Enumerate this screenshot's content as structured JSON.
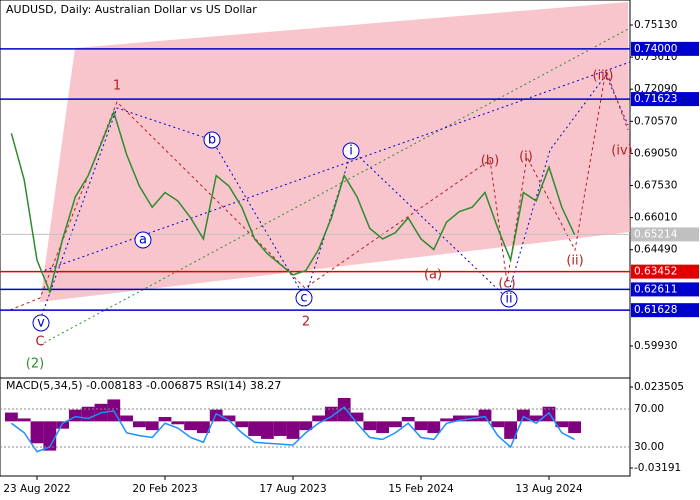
{
  "chart_data": [
    {
      "type": "line",
      "title": "AUDUSD, Daily:  Australian Dollar vs US Dollar",
      "categories": [
        null,
        null,
        "23 Aug 2022",
        null,
        null,
        null,
        null,
        null,
        null,
        null,
        null,
        null,
        "20 Feb 2023",
        null,
        null,
        null,
        null,
        null,
        null,
        null,
        null,
        null,
        "17 Aug 2023",
        null,
        null,
        null,
        null,
        null,
        null,
        null,
        null,
        null,
        "15 Feb 2024",
        null,
        null,
        null,
        null,
        null,
        null,
        null,
        null,
        null,
        "13 Aug 2024",
        null,
        null
      ],
      "values": [
        0.7,
        0.678,
        0.64,
        0.625,
        0.65,
        0.67,
        0.68,
        0.695,
        0.71,
        0.69,
        0.675,
        0.665,
        0.672,
        0.668,
        0.66,
        0.65,
        0.68,
        0.675,
        0.665,
        0.65,
        0.643,
        0.638,
        0.633,
        0.635,
        0.645,
        0.66,
        0.68,
        0.67,
        0.655,
        0.65,
        0.653,
        0.66,
        0.65,
        0.645,
        0.658,
        0.663,
        0.665,
        0.672,
        0.655,
        0.64,
        0.672,
        0.668,
        0.684,
        0.665,
        0.652
      ],
      "color": "#2e8b2e",
      "ylim": [
        0.58558,
        0.76314
      ],
      "yticks": [
        {
          "value": 0.7513,
          "label": "0.75130"
        },
        {
          "value": 0.7361,
          "label": "0.73610"
        },
        {
          "value": 0.7209,
          "label": "0.72090"
        },
        {
          "value": 0.7057,
          "label": "0.70570"
        },
        {
          "value": 0.6905,
          "label": "0.69050"
        },
        {
          "value": 0.6753,
          "label": "0.67530"
        },
        {
          "value": 0.6601,
          "label": "0.66010"
        },
        {
          "value": 0.6449,
          "label": "0.64490"
        },
        {
          "value": 0.5993,
          "label": "0.59930"
        }
      ],
      "levels": [
        {
          "value": 0.74,
          "label": "0.74000",
          "color": "#0000cc"
        },
        {
          "value": 0.71623,
          "label": "0.71623",
          "color": "#0000cc"
        },
        {
          "value": 0.65214,
          "label": "0.65214",
          "color": "#c0c0c0"
        },
        {
          "value": 0.63452,
          "label": "0.63452",
          "color": "#e00000"
        },
        {
          "value": 0.62611,
          "label": "0.62611",
          "color": "#0000cc"
        },
        {
          "value": 0.61628,
          "label": "0.61628",
          "color": "#0000cc"
        }
      ],
      "annotations": [
        "1",
        "2",
        "C",
        "(2)",
        "v",
        "a",
        "b",
        "c",
        "i",
        "ii",
        "(a)",
        "(b)",
        "(c)",
        "(i)",
        "(ii)",
        "(iii)",
        "(iv)"
      ]
    },
    {
      "type": "bar",
      "title": "MACD(5,34,5) -0.008183 -0.006875 RSI(14) 38.27",
      "series": [
        {
          "color": "#800080",
          "values": [
            0.006,
            0.002,
            -0.015,
            -0.02,
            -0.005,
            0.008,
            0.01,
            0.012,
            0.015,
            0.004,
            -0.004,
            -0.006,
            0.003,
            -0.002,
            -0.006,
            -0.008,
            0.008,
            0.004,
            -0.004,
            -0.01,
            -0.012,
            -0.01,
            -0.012,
            -0.006,
            0.004,
            0.01,
            0.016,
            0.006,
            -0.006,
            -0.008,
            -0.004,
            0.003,
            -0.006,
            -0.008,
            0.002,
            0.004,
            0.004,
            0.008,
            -0.004,
            -0.012,
            0.008,
            0.004,
            0.01,
            -0.004,
            -0.008
          ]
        },
        {
          "color": "#1e90ff",
          "axis": "y2",
          "values": [
            55,
            45,
            25,
            30,
            55,
            62,
            60,
            66,
            68,
            45,
            42,
            40,
            55,
            50,
            40,
            35,
            65,
            58,
            45,
            35,
            34,
            33,
            32,
            45,
            55,
            62,
            72,
            55,
            40,
            38,
            45,
            55,
            40,
            38,
            55,
            58,
            60,
            62,
            42,
            30,
            62,
            55,
            66,
            45,
            38
          ]
        }
      ],
      "ylim": [
        -0.03738,
        0.02966
      ],
      "yticks": [
        0.023505,
        -0.03191
      ],
      "y2lim": [
        -0.5,
        102.6
      ],
      "y2ticks": [
        {
          "value": 70,
          "label": "70.00"
        },
        {
          "value": 30,
          "label": "30.00"
        }
      ]
    }
  ]
}
